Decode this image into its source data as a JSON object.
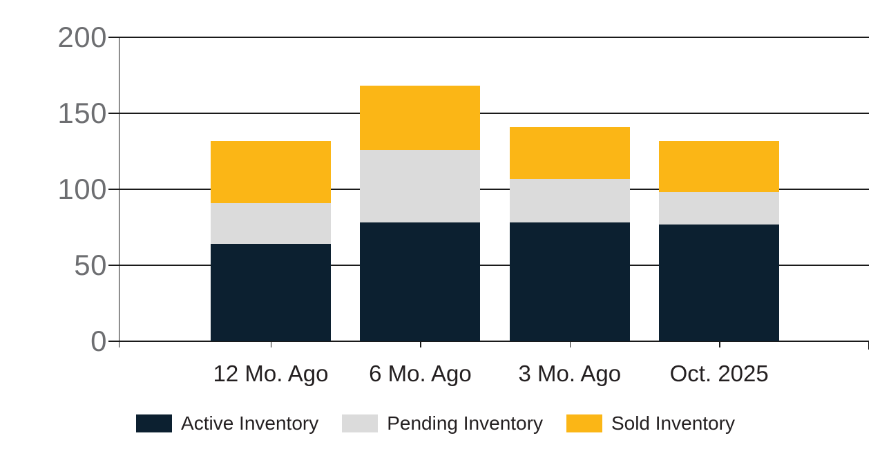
{
  "chart_data": {
    "type": "bar",
    "stacked": true,
    "title": "",
    "categories": [
      "12 Mo. Ago",
      "6 Mo. Ago",
      "3 Mo. Ago",
      "Oct. 2025"
    ],
    "series": [
      {
        "name": "Active Inventory",
        "color": "#0c2030",
        "values": [
          64,
          78,
          78,
          77
        ]
      },
      {
        "name": "Pending Inventory",
        "color": "#dbdbdb",
        "values": [
          27,
          48,
          29,
          21
        ]
      },
      {
        "name": "Sold Inventory",
        "color": "#fbb616",
        "values": [
          41,
          42,
          34,
          34
        ]
      }
    ],
    "totals": [
      132,
      168,
      141,
      132
    ],
    "xlabel": "",
    "ylabel": "",
    "ylim": [
      0,
      200
    ],
    "yticks": [
      0,
      50,
      100,
      150,
      200
    ],
    "grid": true,
    "legend_position": "bottom"
  },
  "colors": {
    "grid_line": "#1a1a1a",
    "y_tick_text": "#6d6e71",
    "x_tick_text": "#231f20",
    "background": "#ffffff"
  }
}
